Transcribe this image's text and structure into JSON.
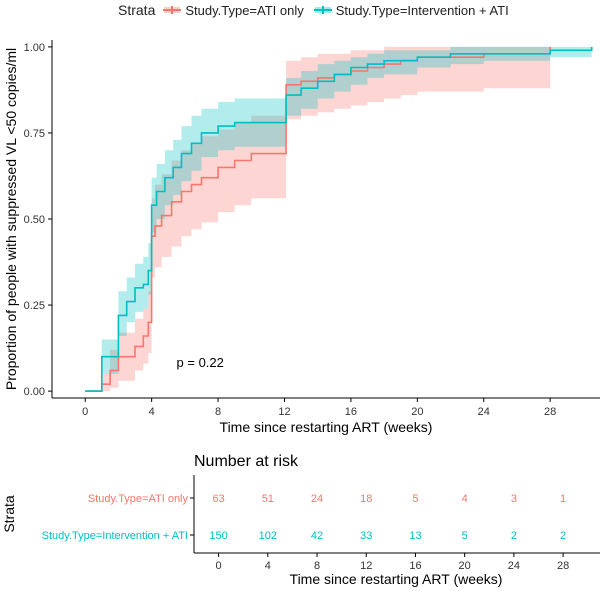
{
  "legend": {
    "title": "Strata",
    "items": [
      {
        "label": "Study.Type=ATI only",
        "color": "#f8766d"
      },
      {
        "label": "Study.Type=Intervention + ATI",
        "color": "#00bfc4"
      }
    ]
  },
  "chart_data": [
    {
      "type": "line",
      "subtype": "kaplan-meier-step",
      "title": "",
      "xlabel": "Time since restarting ART (weeks)",
      "ylabel": "Proportion of people with suppressed VL <50 copies/ml",
      "xlim": [
        -2,
        31
      ],
      "ylim": [
        -0.02,
        1.02
      ],
      "xticks": [
        0,
        4,
        8,
        12,
        16,
        20,
        24,
        28
      ],
      "xtick_labels": [
        "0",
        "4",
        "8",
        "12",
        "16",
        "20",
        "24",
        "28"
      ],
      "yticks": [
        0.0,
        0.25,
        0.5,
        0.75,
        1.0
      ],
      "ytick_labels": [
        "0.00",
        "0.25",
        "0.50",
        "0.75",
        "1.00"
      ],
      "annotation": "p = 0.22",
      "annotation_position": {
        "x": 5.5,
        "y": 0.07
      },
      "series": [
        {
          "name": "Study.Type=ATI only",
          "color": "#f8766d",
          "x": [
            0,
            0.8,
            1.0,
            1.5,
            2.0,
            3.0,
            3.5,
            3.8,
            4.0,
            4.2,
            4.6,
            5.2,
            5.8,
            6.4,
            7.0,
            8.0,
            9.0,
            10.0,
            11.9,
            12.1,
            13.0,
            14.0,
            15.0,
            16.0,
            17.0,
            18.0,
            19.0,
            20.0,
            24.0,
            28.0
          ],
          "y": [
            0,
            0,
            0.02,
            0.06,
            0.1,
            0.13,
            0.16,
            0.2,
            0.45,
            0.48,
            0.51,
            0.55,
            0.58,
            0.6,
            0.62,
            0.65,
            0.67,
            0.69,
            0.69,
            0.89,
            0.9,
            0.91,
            0.92,
            0.93,
            0.94,
            0.95,
            0.96,
            0.97,
            0.98,
            1.0
          ],
          "lower": [
            0,
            0,
            0,
            0.01,
            0.03,
            0.06,
            0.08,
            0.11,
            0.33,
            0.36,
            0.39,
            0.42,
            0.45,
            0.47,
            0.49,
            0.52,
            0.54,
            0.56,
            0.56,
            0.79,
            0.8,
            0.81,
            0.82,
            0.83,
            0.84,
            0.85,
            0.86,
            0.87,
            0.88,
            0.89
          ],
          "upper": [
            0,
            0,
            0.05,
            0.12,
            0.17,
            0.21,
            0.24,
            0.29,
            0.56,
            0.6,
            0.63,
            0.67,
            0.7,
            0.72,
            0.74,
            0.76,
            0.78,
            0.8,
            0.8,
            0.96,
            0.97,
            0.98,
            0.98,
            0.99,
            0.99,
            1.0,
            1.0,
            1.0,
            1.0,
            1.0
          ]
        },
        {
          "name": "Study.Type=Intervention + ATI",
          "color": "#00bfc4",
          "x": [
            0,
            0.8,
            1.0,
            1.8,
            2.0,
            2.5,
            3.0,
            3.5,
            3.8,
            4.0,
            4.3,
            4.8,
            5.3,
            5.8,
            6.4,
            7.0,
            8.0,
            9.0,
            11.9,
            12.1,
            13.0,
            14.0,
            15.0,
            16.0,
            17.0,
            18.0,
            20.0,
            22.0,
            24.0,
            28.0,
            30.5
          ],
          "y": [
            0,
            0,
            0.1,
            0.1,
            0.22,
            0.26,
            0.3,
            0.31,
            0.35,
            0.54,
            0.58,
            0.62,
            0.65,
            0.69,
            0.72,
            0.75,
            0.77,
            0.78,
            0.78,
            0.86,
            0.88,
            0.9,
            0.92,
            0.94,
            0.95,
            0.96,
            0.97,
            0.98,
            0.98,
            0.99,
            1.0
          ],
          "lower": [
            0,
            0,
            0.05,
            0.05,
            0.16,
            0.2,
            0.23,
            0.24,
            0.28,
            0.46,
            0.5,
            0.54,
            0.57,
            0.61,
            0.64,
            0.68,
            0.7,
            0.71,
            0.71,
            0.8,
            0.82,
            0.85,
            0.87,
            0.89,
            0.91,
            0.92,
            0.94,
            0.95,
            0.96,
            0.97,
            0.98
          ],
          "upper": [
            0,
            0,
            0.15,
            0.15,
            0.29,
            0.33,
            0.37,
            0.39,
            0.43,
            0.62,
            0.66,
            0.7,
            0.73,
            0.77,
            0.8,
            0.82,
            0.84,
            0.85,
            0.85,
            0.91,
            0.93,
            0.95,
            0.96,
            0.97,
            0.98,
            0.99,
            0.99,
            1.0,
            1.0,
            1.0,
            1.0
          ]
        }
      ]
    },
    {
      "type": "table",
      "title": "Number at risk",
      "xlabel": "Time since restarting ART (weeks)",
      "ylabel": "Strata",
      "x": [
        0,
        4,
        8,
        12,
        16,
        20,
        24,
        28
      ],
      "xtick_labels": [
        "0",
        "4",
        "8",
        "12",
        "16",
        "20",
        "24",
        "28"
      ],
      "rows": [
        {
          "strata": "Study.Type=ATI only",
          "color": "#f8766d",
          "values": [
            "63",
            "51",
            "24",
            "18",
            "5",
            "4",
            "3",
            "1"
          ]
        },
        {
          "strata": "Study.Type=Intervention + ATI",
          "color": "#00bfc4",
          "values": [
            "150",
            "102",
            "42",
            "33",
            "13",
            "5",
            "2",
            "2"
          ]
        }
      ]
    }
  ]
}
